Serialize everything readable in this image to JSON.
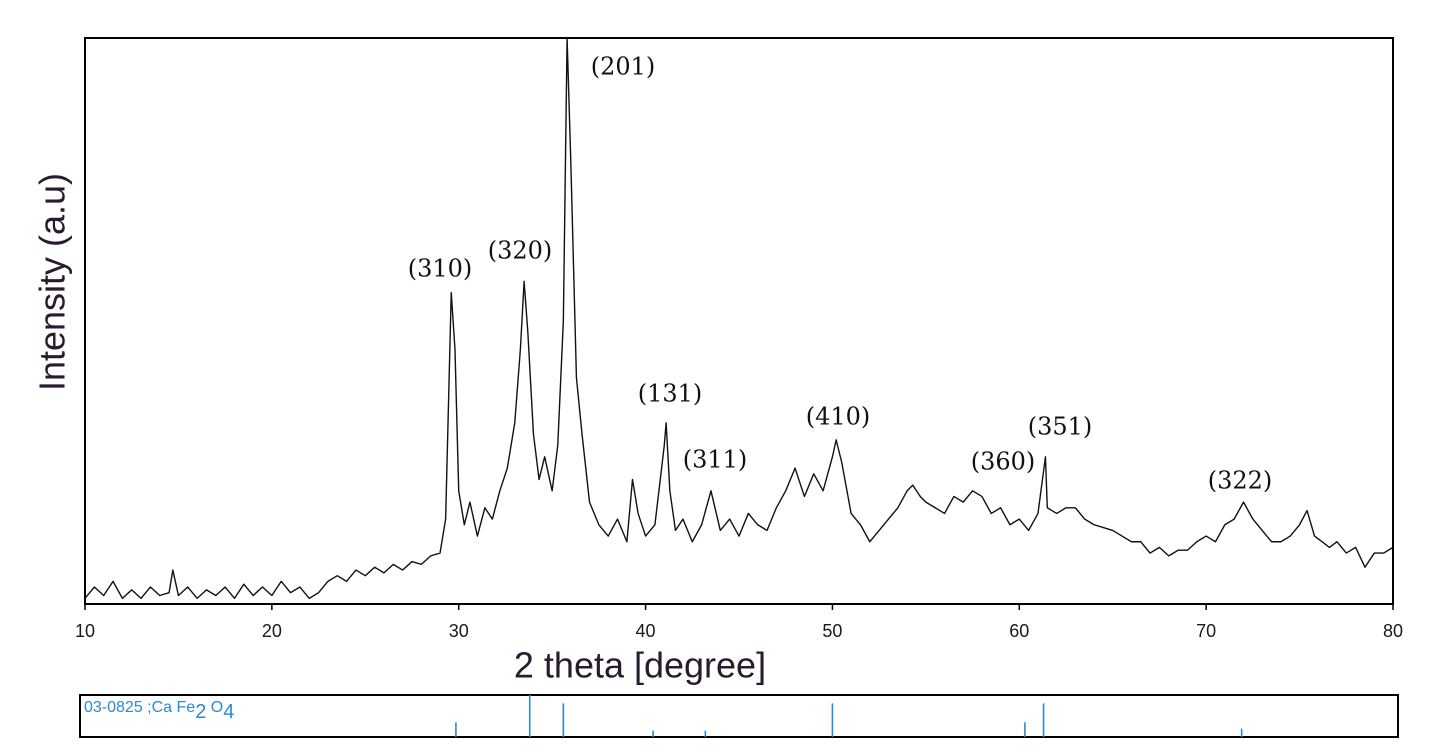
{
  "chart_data": [
    {
      "type": "line",
      "x_label": "2 theta [degree]",
      "y_label": "Intensity (a.u)",
      "xlim": [
        10,
        80
      ],
      "ylim": [
        0,
        100
      ],
      "xticks": [
        10,
        20,
        30,
        40,
        50,
        60,
        70,
        80
      ],
      "color": "#111111",
      "annotations": [
        "(310)",
        "(320)",
        "(201)",
        "(131)",
        "(311)",
        "(410)",
        "(360)",
        "(351)",
        "(322)"
      ],
      "x": [
        10,
        10.5,
        11,
        11.5,
        12,
        12.5,
        13,
        13.5,
        14,
        14.5,
        14.7,
        15,
        15.5,
        16,
        16.5,
        17,
        17.5,
        18,
        18.5,
        19,
        19.5,
        20,
        20.5,
        21,
        21.5,
        22,
        22.5,
        23,
        23.5,
        24,
        24.5,
        25,
        25.5,
        26,
        26.5,
        27,
        27.5,
        28,
        28.5,
        29,
        29.3,
        29.6,
        29.8,
        30,
        30.3,
        30.6,
        31,
        31.4,
        31.8,
        32.2,
        32.6,
        33,
        33.3,
        33.5,
        33.7,
        34,
        34.3,
        34.6,
        35,
        35.3,
        35.6,
        35.8,
        36,
        36.3,
        36.6,
        37,
        37.5,
        38,
        38.5,
        39,
        39.3,
        39.6,
        40,
        40.5,
        41,
        41.1,
        41.3,
        41.6,
        42,
        42.5,
        43,
        43.5,
        44,
        44.5,
        45,
        45.5,
        46,
        46.5,
        47,
        47.5,
        48,
        48.5,
        49,
        49.5,
        50,
        50.2,
        50.5,
        51,
        51.5,
        52,
        52.5,
        53,
        53.5,
        54,
        54.3,
        54.7,
        55,
        55.5,
        56,
        56.5,
        57,
        57.5,
        58,
        58.5,
        59,
        59.5,
        60,
        60.5,
        61,
        61.4,
        61.5,
        62,
        62.5,
        63,
        63.5,
        64,
        64.5,
        65,
        65.5,
        66,
        66.5,
        67,
        67.5,
        68,
        68.5,
        69,
        69.5,
        70,
        70.5,
        71,
        71.5,
        72,
        72.5,
        73,
        73.5,
        74,
        74.5,
        75,
        75.4,
        75.8,
        76.2,
        76.6,
        77,
        77.5,
        78,
        78.5,
        79,
        79.5,
        80
      ],
      "values": [
        1,
        3,
        1.5,
        4,
        1,
        2.5,
        1,
        3,
        1.5,
        2,
        6,
        1.5,
        3,
        1,
        2.5,
        1.5,
        3,
        1,
        3.5,
        1.5,
        3,
        1.5,
        4,
        2,
        3,
        1,
        2,
        4,
        5,
        4,
        6,
        5,
        6.5,
        5.5,
        7,
        6,
        7.5,
        7,
        8.5,
        9,
        15,
        55,
        45,
        20,
        14,
        18,
        12,
        17,
        15,
        20,
        24,
        32,
        45,
        57,
        48,
        30,
        22,
        26,
        20,
        28,
        50,
        100,
        78,
        40,
        30,
        18,
        14,
        12,
        15,
        11,
        22,
        16,
        12,
        14,
        28,
        32,
        20,
        13,
        15,
        11,
        14,
        20,
        13,
        15,
        12,
        16,
        14,
        13,
        17,
        20,
        24,
        19,
        23,
        20,
        26,
        29,
        25,
        16,
        14,
        11,
        13,
        15,
        17,
        20,
        21,
        19,
        18,
        17,
        16,
        19,
        18,
        20,
        19,
        16,
        17,
        14,
        15,
        13,
        16,
        26,
        17,
        16,
        17,
        17,
        15,
        14,
        13.5,
        13,
        12,
        11,
        11,
        9,
        10,
        8.5,
        9.5,
        9.5,
        11,
        12,
        11,
        14,
        15,
        18,
        15,
        13,
        11,
        11,
        12,
        14,
        16.5,
        12,
        11,
        10,
        11,
        9,
        10,
        6.5,
        9,
        9,
        10
      ]
    },
    {
      "type": "stick",
      "label_parts": [
        "03-0825 ;Ca Fe",
        "2",
        " O",
        "4"
      ],
      "xlim": [
        10,
        80
      ],
      "ylim": [
        0,
        100
      ],
      "color": "#2a8ad4",
      "x": [
        29.85,
        33.8,
        35.6,
        40.4,
        43.2,
        50.0,
        60.3,
        61.3,
        71.9
      ],
      "values": [
        35,
        100,
        80,
        15,
        15,
        80,
        35,
        80,
        20
      ]
    }
  ]
}
